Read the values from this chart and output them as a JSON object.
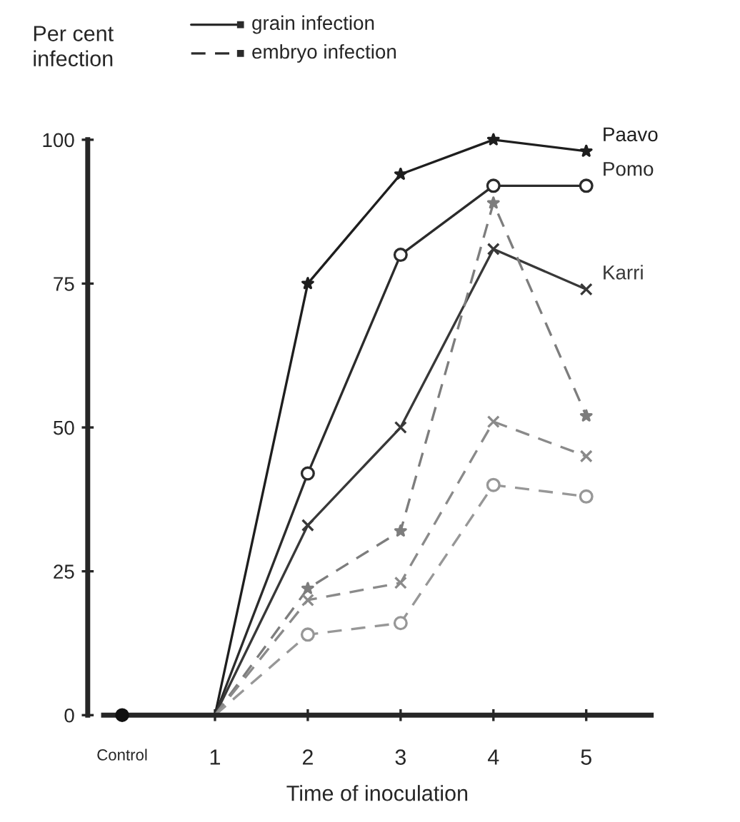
{
  "chart_data": {
    "type": "line",
    "ylabel": "Per cent\ninfection",
    "xlabel": "Time of inoculation",
    "categories": [
      "Control",
      "1",
      "2",
      "3",
      "4",
      "5"
    ],
    "series": [
      {
        "type": "scatter",
        "color": "#111111",
        "marker": "circle",
        "values": [
          0,
          null,
          null,
          null,
          null,
          null
        ]
      },
      {
        "name": "Paavo",
        "color": "#1e1e1e",
        "line_style": "solid",
        "marker": "star",
        "values": [
          null,
          0,
          75,
          94,
          100,
          98
        ]
      },
      {
        "name": "Pomo",
        "color": "#2b2b2b",
        "line_style": "solid",
        "marker": "circle",
        "values": [
          null,
          0,
          42,
          80,
          92,
          92
        ]
      },
      {
        "name": "Karri",
        "color": "#383838",
        "line_style": "solid",
        "marker": "cross",
        "values": [
          null,
          0,
          33,
          50,
          81,
          74
        ]
      },
      {
        "color": "#7d7d7d",
        "line_style": "dashed",
        "marker": "star",
        "values": [
          null,
          0,
          22,
          32,
          89,
          52
        ]
      },
      {
        "color": "#8a8a8a",
        "line_style": "dashed",
        "marker": "cross",
        "values": [
          null,
          0,
          20,
          23,
          51,
          45
        ]
      },
      {
        "color": "#979797",
        "line_style": "dashed",
        "marker": "circle",
        "values": [
          null,
          0,
          14,
          16,
          40,
          38
        ]
      }
    ],
    "annotations": [
      "grain infection",
      "embryo infection"
    ],
    "ylim": [
      0,
      100
    ],
    "yticks": [
      0,
      25,
      50,
      75,
      100
    ],
    "grid": false
  }
}
